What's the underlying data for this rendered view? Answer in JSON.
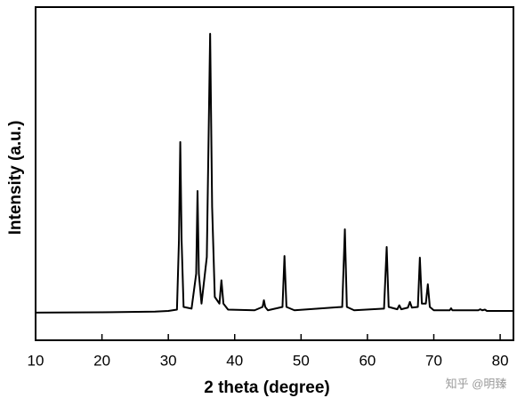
{
  "chart_data": {
    "type": "line",
    "x_label": "2 theta (degree)",
    "y_label": "Intensity (a.u.)",
    "watermark": "知乎 @明臻",
    "xlim": [
      10,
      82
    ],
    "xticks": [
      10,
      20,
      30,
      40,
      50,
      60,
      70,
      80
    ],
    "ylim": [
      0,
      100
    ],
    "color": "#000000",
    "x": [
      10,
      20,
      28,
      30,
      31.3,
      31.6,
      31.8,
      32.0,
      32.3,
      33.5,
      34.2,
      34.4,
      34.6,
      35.0,
      35.8,
      36.3,
      36.6,
      37.0,
      37.7,
      38.0,
      38.3,
      39,
      43,
      44.2,
      44.4,
      44.6,
      45,
      47.2,
      47.5,
      47.8,
      49,
      56.2,
      56.6,
      56.9,
      58,
      62.5,
      62.9,
      63.2,
      64.5,
      64.8,
      65.1,
      66.1,
      66.4,
      66.7,
      67.6,
      67.9,
      68.2,
      68.8,
      69.1,
      69.4,
      70,
      72.4,
      72.6,
      72.8,
      76.7,
      77.0,
      77.3,
      77.7,
      78,
      82
    ],
    "values": [
      8.3,
      8.4,
      8.6,
      8.8,
      9.2,
      30,
      59.5,
      30,
      10,
      9.5,
      20,
      44.8,
      20,
      11,
      25,
      92,
      40,
      13,
      11,
      18,
      11,
      9.2,
      9,
      10,
      12,
      10,
      9,
      10,
      25.3,
      10,
      9,
      10,
      33.3,
      10,
      9,
      9.5,
      28,
      10,
      9.3,
      10.5,
      9.3,
      9.8,
      11.5,
      9.8,
      10,
      24.8,
      11,
      11,
      16.8,
      10,
      9,
      9,
      9.6,
      9,
      9,
      9.3,
      9,
      9.2,
      8.8,
      8.8
    ]
  }
}
